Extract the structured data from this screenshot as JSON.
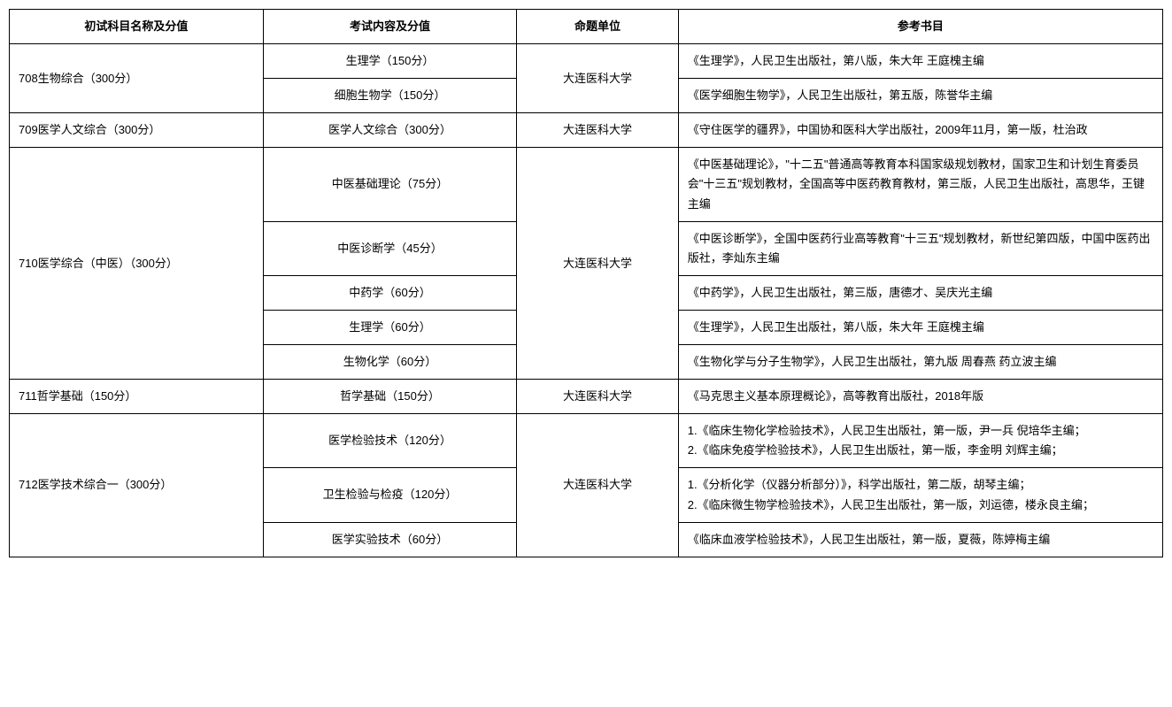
{
  "table": {
    "headers": {
      "subject": "初试科目名称及分值",
      "content": "考试内容及分值",
      "unit": "命题单位",
      "reference": "参考书目"
    },
    "rows": [
      {
        "subject": "708生物综合（300分）",
        "unit": "大连医科大学",
        "items": [
          {
            "content": "生理学（150分）",
            "ref": "《生理学》，人民卫生出版社，第八版，朱大年 王庭槐主编"
          },
          {
            "content": "细胞生物学（150分）",
            "ref": "《医学细胞生物学》，人民卫生出版社，第五版，陈誉华主编"
          }
        ]
      },
      {
        "subject": "709医学人文综合（300分）",
        "unit": "大连医科大学",
        "items": [
          {
            "content": "医学人文综合（300分）",
            "ref": "《守住医学的疆界》，中国协和医科大学出版社，2009年11月，第一版，杜治政"
          }
        ]
      },
      {
        "subject": "710医学综合（中医）（300分）",
        "unit": "大连医科大学",
        "items": [
          {
            "content": "中医基础理论（75分）",
            "ref": "《中医基础理论》，\"十二五\"普通高等教育本科国家级规划教材，国家卫生和计划生育委员会\"十三五\"规划教材，全国高等中医药教育教材，第三版，人民卫生出版社，高思华，王键主编"
          },
          {
            "content": "中医诊断学（45分）",
            "ref": "《中医诊断学》，全国中医药行业高等教育\"十三五\"规划教材，新世纪第四版，中国中医药出版社，李灿东主编"
          },
          {
            "content": "中药学（60分）",
            "ref": "《中药学》，人民卫生出版社，第三版，唐德才、吴庆光主编"
          },
          {
            "content": "生理学（60分）",
            "ref": "《生理学》，人民卫生出版社，第八版，朱大年 王庭槐主编"
          },
          {
            "content": "生物化学（60分）",
            "ref": "《生物化学与分子生物学》，人民卫生出版社，第九版 周春燕 药立波主编"
          }
        ]
      },
      {
        "subject": "711哲学基础（150分）",
        "unit": "大连医科大学",
        "items": [
          {
            "content": "哲学基础（150分）",
            "ref": "《马克思主义基本原理概论》，高等教育出版社，2018年版"
          }
        ]
      },
      {
        "subject": "712医学技术综合一（300分）",
        "unit": "大连医科大学",
        "items": [
          {
            "content": "医学检验技术（120分）",
            "ref": "1.《临床生物化学检验技术》，人民卫生出版社，第一版，尹一兵 倪培华主编；\n2.《临床免疫学检验技术》，人民卫生出版社，第一版，李金明 刘辉主编；"
          },
          {
            "content": "卫生检验与检疫（120分）",
            "ref": "1.《分析化学（仪器分析部分）》，科学出版社，第二版，胡琴主编；\n2.《临床微生物学检验技术》，人民卫生出版社，第一版，刘运德，楼永良主编；"
          },
          {
            "content": "医学实验技术（60分）",
            "ref": "《临床血液学检验技术》，人民卫生出版社，第一版，夏薇，陈婷梅主编"
          }
        ]
      }
    ]
  }
}
